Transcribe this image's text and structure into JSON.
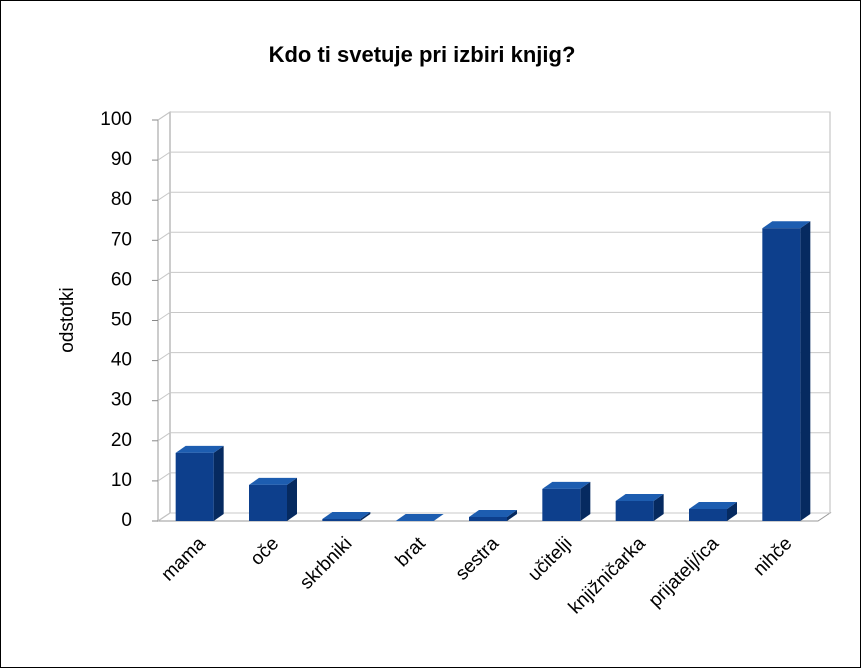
{
  "chart_data": {
    "type": "bar3d",
    "title": "Kdo ti svetuje pri izbiri knjig?",
    "ylabel": "odstotki",
    "categories": [
      "mama",
      "oče",
      "skrbniki",
      "brat",
      "sestra",
      "učitelji",
      "knjižničarka",
      "prijatelj/ica",
      "nihče"
    ],
    "values": [
      17,
      9,
      0.5,
      0,
      1,
      8,
      5,
      3,
      73
    ],
    "color": "#0d3f8c",
    "ylim": [
      0,
      100
    ],
    "yticks": [
      0,
      10,
      20,
      30,
      40,
      50,
      60,
      70,
      80,
      90,
      100
    ],
    "grid": true
  }
}
